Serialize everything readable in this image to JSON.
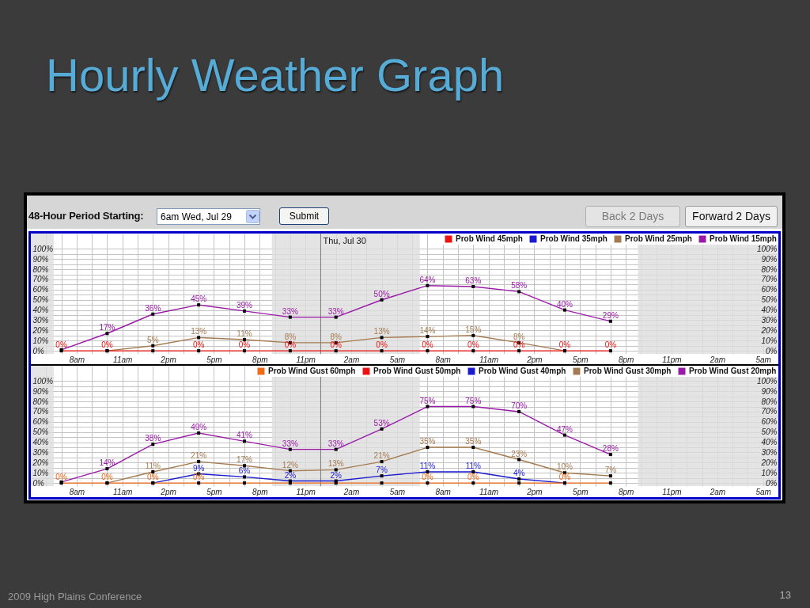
{
  "chart_data": [
    {
      "type": "line",
      "title": "Hourly Weather Graph",
      "annotations": [
        "48-Hour Period Starting:",
        "6am Wed, Jul 29",
        "Submit",
        "Back 2 Days",
        "Forward 2 Days"
      ],
      "x": [
        "2009-07-29T07:00",
        "2009-07-29T10:00",
        "2009-07-29T13:00",
        "2009-07-29T16:00",
        "2009-07-29T19:00",
        "2009-07-29T22:00",
        "2009-07-30T01:00",
        "2009-07-30T04:00",
        "2009-07-30T07:00",
        "2009-07-30T10:00",
        "2009-07-30T13:00",
        "2009-07-30T16:00",
        "2009-07-30T19:00"
      ],
      "series": [
        {
          "name": "Prob Wind 45mph",
          "color": "#ee1111",
          "values": [
            0,
            0,
            0,
            0,
            0,
            0,
            0,
            0,
            0,
            0,
            0,
            0,
            0
          ],
          "value_labels": [
            "0%",
            "0%",
            null,
            "0%",
            "0%",
            "0%",
            "0%",
            "0%",
            "0%",
            "0%",
            "0%",
            "0%",
            "0%"
          ]
        },
        {
          "name": "Prob Wind 35mph",
          "color": "#1a1ad0",
          "values": [
            null,
            null,
            null,
            null,
            null,
            null,
            null,
            null,
            null,
            null,
            null,
            null,
            null
          ]
        },
        {
          "name": "Prob Wind 25mph",
          "color": "#a47a50",
          "values": [
            null,
            0,
            5,
            13,
            11,
            8,
            8,
            13,
            14,
            15,
            8,
            0,
            null
          ],
          "value_labels": [
            null,
            null,
            "5%",
            "13%",
            "11%",
            "8%",
            "8%",
            "13%",
            "14%",
            "15%",
            "8%",
            null,
            null
          ]
        },
        {
          "name": "Prob Wind 15mph",
          "color": "#9a1aa8",
          "values": [
            1,
            17,
            36,
            45,
            39,
            33,
            33,
            50,
            64,
            63,
            58,
            40,
            29
          ],
          "value_labels": [
            null,
            "17%",
            "36%",
            "45%",
            "39%",
            "33%",
            "33%",
            "50%",
            "64%",
            "63%",
            "58%",
            "40%",
            "29%"
          ]
        }
      ],
      "xlim": [
        "2009-07-29T05:00",
        "2009-07-31T06:00"
      ],
      "xticks": [
        {
          "value": "2009-07-29T06:00",
          "label": null
        },
        {
          "value": "2009-07-29T07:00",
          "label": null
        },
        {
          "value": "2009-07-29T08:00",
          "label": "8am"
        },
        {
          "value": "2009-07-29T09:00",
          "label": null
        },
        {
          "value": "2009-07-29T10:00",
          "label": null
        },
        {
          "value": "2009-07-29T11:00",
          "label": "11am"
        },
        {
          "value": "2009-07-29T12:00",
          "label": null
        },
        {
          "value": "2009-07-29T13:00",
          "label": null
        },
        {
          "value": "2009-07-29T14:00",
          "label": "2pm"
        },
        {
          "value": "2009-07-29T15:00",
          "label": null
        },
        {
          "value": "2009-07-29T16:00",
          "label": null
        },
        {
          "value": "2009-07-29T17:00",
          "label": "5pm"
        },
        {
          "value": "2009-07-29T18:00",
          "label": null
        },
        {
          "value": "2009-07-29T19:00",
          "label": null
        },
        {
          "value": "2009-07-29T20:00",
          "label": "8pm"
        },
        {
          "value": "2009-07-29T21:00",
          "label": null
        },
        {
          "value": "2009-07-29T22:00",
          "label": null
        },
        {
          "value": "2009-07-29T23:00",
          "label": "11pm"
        },
        {
          "value": "2009-07-30T00:00",
          "label": null
        },
        {
          "value": "2009-07-30T01:00",
          "label": null
        },
        {
          "value": "2009-07-30T02:00",
          "label": "2am"
        },
        {
          "value": "2009-07-30T03:00",
          "label": null
        },
        {
          "value": "2009-07-30T04:00",
          "label": null
        },
        {
          "value": "2009-07-30T05:00",
          "label": "5am"
        },
        {
          "value": "2009-07-30T06:00",
          "label": null
        },
        {
          "value": "2009-07-30T07:00",
          "label": null
        },
        {
          "value": "2009-07-30T08:00",
          "label": "8am"
        },
        {
          "value": "2009-07-30T09:00",
          "label": null
        },
        {
          "value": "2009-07-30T10:00",
          "label": null
        },
        {
          "value": "2009-07-30T11:00",
          "label": "11am"
        },
        {
          "value": "2009-07-30T12:00",
          "label": null
        },
        {
          "value": "2009-07-30T13:00",
          "label": null
        },
        {
          "value": "2009-07-30T14:00",
          "label": "2pm"
        },
        {
          "value": "2009-07-30T15:00",
          "label": null
        },
        {
          "value": "2009-07-30T16:00",
          "label": null
        },
        {
          "value": "2009-07-30T17:00",
          "label": "5pm"
        },
        {
          "value": "2009-07-30T18:00",
          "label": null
        },
        {
          "value": "2009-07-30T19:00",
          "label": null
        },
        {
          "value": "2009-07-30T20:00",
          "label": "8pm"
        },
        {
          "value": "2009-07-30T21:00",
          "label": null
        },
        {
          "value": "2009-07-30T22:00",
          "label": null
        },
        {
          "value": "2009-07-30T23:00",
          "label": "11pm"
        },
        {
          "value": "2009-07-31T00:00",
          "label": null
        },
        {
          "value": "2009-07-31T01:00",
          "label": null
        },
        {
          "value": "2009-07-31T02:00",
          "label": "2am"
        },
        {
          "value": "2009-07-31T03:00",
          "label": null
        },
        {
          "value": "2009-07-31T04:00",
          "label": null
        },
        {
          "value": "2009-07-31T05:00",
          "label": "5am"
        }
      ],
      "ylim": [
        -3,
        115
      ],
      "yticks": [
        {
          "value": 0,
          "label": "0%"
        },
        {
          "value": 5,
          "label": null
        },
        {
          "value": 10,
          "label": "10%"
        },
        {
          "value": 15,
          "label": null
        },
        {
          "value": 20,
          "label": "20%"
        },
        {
          "value": 25,
          "label": null
        },
        {
          "value": 30,
          "label": "30%"
        },
        {
          "value": 35,
          "label": null
        },
        {
          "value": 40,
          "label": "40%"
        },
        {
          "value": 45,
          "label": null
        },
        {
          "value": 50,
          "label": "50%"
        },
        {
          "value": 55,
          "label": null
        },
        {
          "value": 60,
          "label": "60%"
        },
        {
          "value": 65,
          "label": null
        },
        {
          "value": 70,
          "label": "70%"
        },
        {
          "value": 75,
          "label": null
        },
        {
          "value": 80,
          "label": "80%"
        },
        {
          "value": 85,
          "label": null
        },
        {
          "value": 90,
          "label": "90%"
        },
        {
          "value": 95,
          "label": null
        },
        {
          "value": 100,
          "label": "100%"
        }
      ],
      "y2lim": [
        -3,
        115
      ],
      "y2ticks": [
        {
          "value": 0,
          "label": "0%"
        },
        {
          "value": 10,
          "label": "10%"
        },
        {
          "value": 20,
          "label": "20%"
        },
        {
          "value": 30,
          "label": "30%"
        },
        {
          "value": 40,
          "label": "40%"
        },
        {
          "value": 50,
          "label": "50%"
        },
        {
          "value": 60,
          "label": "60%"
        },
        {
          "value": 70,
          "label": "70%"
        },
        {
          "value": 80,
          "label": "80%"
        },
        {
          "value": 90,
          "label": "90%"
        },
        {
          "value": 100,
          "label": "100%"
        }
      ],
      "grid": true,
      "legend": "top right",
      "marker": "square",
      "ref_lines": [
        {
          "axis": "x",
          "value": "2009-07-30T00:00",
          "label": "Thu, Jul 30",
          "color": "#7a7a7a"
        }
      ],
      "bands": [
        {
          "axis": "x",
          "from": "2009-07-29T05:00",
          "to": "2009-07-29T06:30",
          "color": "#dddddd"
        },
        {
          "axis": "x",
          "from": "2009-07-29T20:48",
          "to": "2009-07-30T06:30",
          "color": "#dddddd"
        },
        {
          "axis": "x",
          "from": "2009-07-30T20:48",
          "to": "2009-07-31T06:00",
          "color": "#dddddd"
        }
      ]
    },
    {
      "type": "line",
      "annotations": [
        "2009 High Plains Conference",
        "13"
      ],
      "x": [
        "2009-07-29T07:00",
        "2009-07-29T10:00",
        "2009-07-29T13:00",
        "2009-07-29T16:00",
        "2009-07-29T19:00",
        "2009-07-29T22:00",
        "2009-07-30T01:00",
        "2009-07-30T04:00",
        "2009-07-30T07:00",
        "2009-07-30T10:00",
        "2009-07-30T13:00",
        "2009-07-30T16:00",
        "2009-07-30T19:00"
      ],
      "series": [
        {
          "name": "Prob Wind Gust 60mph",
          "color": "#f06a18",
          "values": [
            0,
            0,
            0,
            0,
            0,
            0,
            0,
            0,
            0,
            0,
            0,
            0,
            0
          ],
          "value_labels": [
            "0%",
            "0%",
            "0%",
            "0%",
            null,
            null,
            null,
            null,
            "0%",
            "0%",
            null,
            "0%",
            null
          ]
        },
        {
          "name": "Prob Wind Gust 50mph",
          "color": "#ee1111",
          "values": [
            null,
            null,
            null,
            null,
            null,
            null,
            null,
            null,
            null,
            null,
            null,
            null,
            null
          ]
        },
        {
          "name": "Prob Wind Gust 40mph",
          "color": "#1a1ad0",
          "values": [
            null,
            null,
            0,
            9,
            6,
            2,
            2,
            7,
            11,
            11,
            4,
            0,
            null
          ],
          "value_labels": [
            null,
            null,
            null,
            "9%",
            "6%",
            "2%",
            "2%",
            "7%",
            "11%",
            "11%",
            "4%",
            null,
            null
          ]
        },
        {
          "name": "Prob Wind Gust 30mph",
          "color": "#a47a50",
          "values": [
            null,
            0,
            11,
            21,
            17,
            12,
            13,
            21,
            35,
            35,
            23,
            10,
            7
          ],
          "value_labels": [
            null,
            null,
            "11%",
            "21%",
            "17%",
            "12%",
            "13%",
            "21%",
            "35%",
            "35%",
            "23%",
            "10%",
            "7%"
          ]
        },
        {
          "name": "Prob Wind Gust 20mph",
          "color": "#9a1aa8",
          "values": [
            1,
            14,
            38,
            49,
            41,
            33,
            33,
            53,
            75,
            75,
            70,
            47,
            28
          ],
          "value_labels": [
            null,
            "14%",
            "38%",
            "49%",
            "41%",
            "33%",
            "33%",
            "53%",
            "75%",
            "75%",
            "70%",
            "47%",
            "28%"
          ]
        }
      ],
      "xlim": [
        "2009-07-29T05:00",
        "2009-07-31T06:00"
      ],
      "xticks": [
        {
          "value": "2009-07-29T06:00",
          "label": null
        },
        {
          "value": "2009-07-29T07:00",
          "label": null
        },
        {
          "value": "2009-07-29T08:00",
          "label": "8am"
        },
        {
          "value": "2009-07-29T09:00",
          "label": null
        },
        {
          "value": "2009-07-29T10:00",
          "label": null
        },
        {
          "value": "2009-07-29T11:00",
          "label": "11am"
        },
        {
          "value": "2009-07-29T12:00",
          "label": null
        },
        {
          "value": "2009-07-29T13:00",
          "label": null
        },
        {
          "value": "2009-07-29T14:00",
          "label": "2pm"
        },
        {
          "value": "2009-07-29T15:00",
          "label": null
        },
        {
          "value": "2009-07-29T16:00",
          "label": null
        },
        {
          "value": "2009-07-29T17:00",
          "label": "5pm"
        },
        {
          "value": "2009-07-29T18:00",
          "label": null
        },
        {
          "value": "2009-07-29T19:00",
          "label": null
        },
        {
          "value": "2009-07-29T20:00",
          "label": "8pm"
        },
        {
          "value": "2009-07-29T21:00",
          "label": null
        },
        {
          "value": "2009-07-29T22:00",
          "label": null
        },
        {
          "value": "2009-07-29T23:00",
          "label": "11pm"
        },
        {
          "value": "2009-07-30T00:00",
          "label": null
        },
        {
          "value": "2009-07-30T01:00",
          "label": null
        },
        {
          "value": "2009-07-30T02:00",
          "label": "2am"
        },
        {
          "value": "2009-07-30T03:00",
          "label": null
        },
        {
          "value": "2009-07-30T04:00",
          "label": null
        },
        {
          "value": "2009-07-30T05:00",
          "label": "5am"
        },
        {
          "value": "2009-07-30T06:00",
          "label": null
        },
        {
          "value": "2009-07-30T07:00",
          "label": null
        },
        {
          "value": "2009-07-30T08:00",
          "label": "8am"
        },
        {
          "value": "2009-07-30T09:00",
          "label": null
        },
        {
          "value": "2009-07-30T10:00",
          "label": null
        },
        {
          "value": "2009-07-30T11:00",
          "label": "11am"
        },
        {
          "value": "2009-07-30T12:00",
          "label": null
        },
        {
          "value": "2009-07-30T13:00",
          "label": null
        },
        {
          "value": "2009-07-30T14:00",
          "label": "2pm"
        },
        {
          "value": "2009-07-30T15:00",
          "label": null
        },
        {
          "value": "2009-07-30T16:00",
          "label": null
        },
        {
          "value": "2009-07-30T17:00",
          "label": "5pm"
        },
        {
          "value": "2009-07-30T18:00",
          "label": null
        },
        {
          "value": "2009-07-30T19:00",
          "label": null
        },
        {
          "value": "2009-07-30T20:00",
          "label": "8pm"
        },
        {
          "value": "2009-07-30T21:00",
          "label": null
        },
        {
          "value": "2009-07-30T22:00",
          "label": null
        },
        {
          "value": "2009-07-30T23:00",
          "label": "11pm"
        },
        {
          "value": "2009-07-31T00:00",
          "label": null
        },
        {
          "value": "2009-07-31T01:00",
          "label": null
        },
        {
          "value": "2009-07-31T02:00",
          "label": "2am"
        },
        {
          "value": "2009-07-31T03:00",
          "label": null
        },
        {
          "value": "2009-07-31T04:00",
          "label": null
        },
        {
          "value": "2009-07-31T05:00",
          "label": "5am"
        }
      ],
      "ylim": [
        -3,
        115
      ],
      "yticks": [
        {
          "value": 0,
          "label": "0%"
        },
        {
          "value": 5,
          "label": null
        },
        {
          "value": 10,
          "label": "10%"
        },
        {
          "value": 15,
          "label": null
        },
        {
          "value": 20,
          "label": "20%"
        },
        {
          "value": 25,
          "label": null
        },
        {
          "value": 30,
          "label": "30%"
        },
        {
          "value": 35,
          "label": null
        },
        {
          "value": 40,
          "label": "40%"
        },
        {
          "value": 45,
          "label": null
        },
        {
          "value": 50,
          "label": "50%"
        },
        {
          "value": 55,
          "label": null
        },
        {
          "value": 60,
          "label": "60%"
        },
        {
          "value": 65,
          "label": null
        },
        {
          "value": 70,
          "label": "70%"
        },
        {
          "value": 75,
          "label": null
        },
        {
          "value": 80,
          "label": "80%"
        },
        {
          "value": 85,
          "label": null
        },
        {
          "value": 90,
          "label": "90%"
        },
        {
          "value": 95,
          "label": null
        },
        {
          "value": 100,
          "label": "100%"
        }
      ],
      "y2lim": [
        -3,
        115
      ],
      "y2ticks": [
        {
          "value": 0,
          "label": "0%"
        },
        {
          "value": 10,
          "label": "10%"
        },
        {
          "value": 20,
          "label": "20%"
        },
        {
          "value": 30,
          "label": "30%"
        },
        {
          "value": 40,
          "label": "40%"
        },
        {
          "value": 50,
          "label": "50%"
        },
        {
          "value": 60,
          "label": "60%"
        },
        {
          "value": 70,
          "label": "70%"
        },
        {
          "value": 80,
          "label": "80%"
        },
        {
          "value": 90,
          "label": "90%"
        },
        {
          "value": 100,
          "label": "100%"
        }
      ],
      "grid": true,
      "legend": "top right",
      "marker": "square",
      "ref_lines": [
        {
          "axis": "x",
          "value": "2009-07-30T00:00",
          "color": "#7a7a7a"
        }
      ],
      "bands": [
        {
          "axis": "x",
          "from": "2009-07-29T05:00",
          "to": "2009-07-29T06:30",
          "color": "#dddddd"
        },
        {
          "axis": "x",
          "from": "2009-07-29T20:48",
          "to": "2009-07-30T06:30",
          "color": "#dddddd"
        },
        {
          "axis": "x",
          "from": "2009-07-30T20:48",
          "to": "2009-07-31T06:00",
          "color": "#dddddd"
        }
      ]
    }
  ]
}
